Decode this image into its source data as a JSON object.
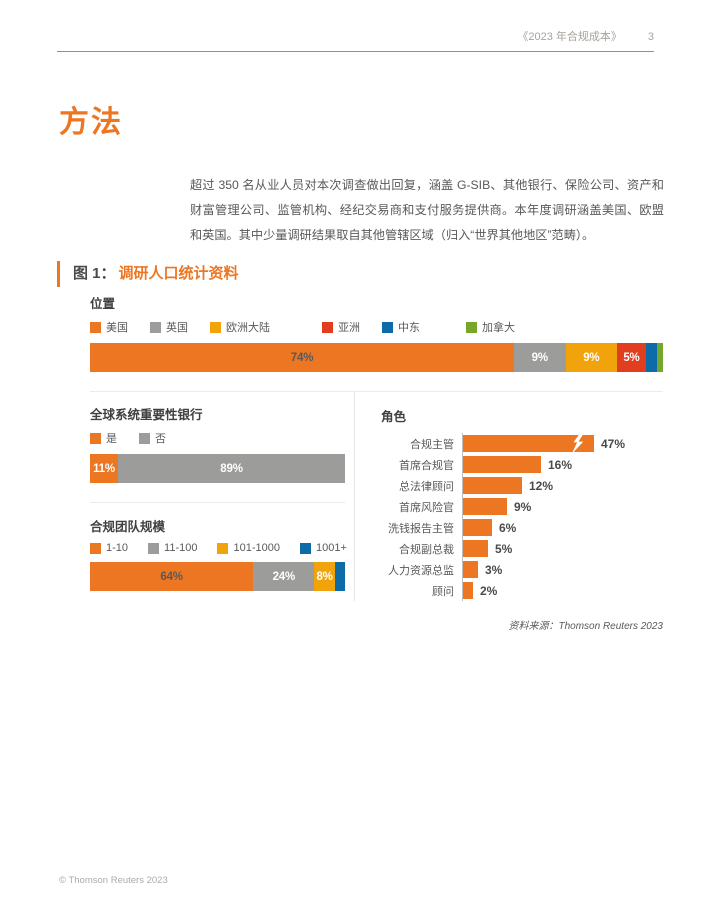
{
  "page": {
    "header": {
      "title": "《2023 年合规成本》",
      "page_number": "3"
    },
    "section_title": "方法",
    "intro_paragraph": "超过 350 名从业人员对本次调查做出回复，涵盖 G-SIB、其他银行、保险公司、资产和财富管理公司、监管机构、经纪交易商和支付服务提供商。本年度调研涵盖美国、欧盟和英国。其中少量调研结果取自其他管辖区域（归入“世界其他地区”范畴）。",
    "figure": {
      "label": "图 1：",
      "title": "调研人口统计资料"
    },
    "source": "资料来源：Thomson Reuters 2023",
    "footer": "© Thomson Reuters 2023"
  },
  "colors": {
    "orange": "#ED7622",
    "gray": "#9C9C9B",
    "amber": "#F0A30A",
    "red": "#E03E1F",
    "blue": "#0D6BA8",
    "green": "#76A62B",
    "dark_text": "#58595B",
    "white": "#FFFFFF"
  },
  "chart_data": [
    {
      "id": "location",
      "type": "bar",
      "subtype": "stacked_horizontal_100pct",
      "title": "位置",
      "legend_position": "top",
      "legend": [
        {
          "label": "美国",
          "color": "#ED7622"
        },
        {
          "label": "英国",
          "color": "#9C9C9B"
        },
        {
          "label": "欧洲大陆",
          "color": "#F0A30A"
        },
        {
          "label": "亚洲",
          "color": "#E03E1F"
        },
        {
          "label": "中东",
          "color": "#0D6BA8"
        },
        {
          "label": "加拿大",
          "color": "#76A62B"
        }
      ],
      "values": [
        74,
        9,
        9,
        5,
        2,
        1
      ],
      "data_labels": [
        "74%",
        "9%",
        "9%",
        "5%",
        "",
        ""
      ],
      "label_colors": [
        "#58595B",
        "#FFFFFF",
        "#FFFFFF",
        "#FFFFFF",
        "",
        ""
      ]
    },
    {
      "id": "gsib",
      "type": "bar",
      "subtype": "stacked_horizontal_100pct",
      "title": "全球系统重要性银行",
      "legend_position": "top",
      "legend": [
        {
          "label": "是",
          "color": "#ED7622"
        },
        {
          "label": "否",
          "color": "#9C9C9B"
        }
      ],
      "values": [
        11,
        89
      ],
      "data_labels": [
        "11%",
        "89%"
      ],
      "label_colors": [
        "#FFFFFF",
        "#FFFFFF"
      ]
    },
    {
      "id": "team_size",
      "type": "bar",
      "subtype": "stacked_horizontal_100pct",
      "title": "合规团队规模",
      "legend_position": "top",
      "legend": [
        {
          "label": "1-10",
          "color": "#ED7622"
        },
        {
          "label": "11-100",
          "color": "#9C9C9B"
        },
        {
          "label": "101-1000",
          "color": "#F0A30A"
        },
        {
          "label": "1001+",
          "color": "#0D6BA8"
        }
      ],
      "values": [
        64,
        24,
        8,
        4
      ],
      "data_labels": [
        "64%",
        "24%",
        "8%",
        ""
      ],
      "label_colors": [
        "#58595B",
        "#FFFFFF",
        "#FFFFFF",
        ""
      ]
    },
    {
      "id": "roles",
      "type": "bar",
      "subtype": "horizontal",
      "title": "角色",
      "bar_color": "#ED7622",
      "categories": [
        "合规主管",
        "首席合规官",
        "总法律顾问",
        "首席风险官",
        "洗钱报告主管",
        "合规副总裁",
        "人力资源总监",
        "顾问"
      ],
      "values": [
        47,
        16,
        12,
        9,
        6,
        5,
        3,
        2
      ],
      "data_labels": [
        "47%",
        "16%",
        "12%",
        "9%",
        "6%",
        "5%",
        "3%",
        "2%"
      ],
      "axis_break_category": "合规主管",
      "grid": false,
      "value_format": "percent"
    }
  ]
}
